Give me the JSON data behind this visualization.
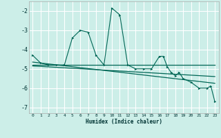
{
  "title": "",
  "xlabel": "Humidex (Indice chaleur)",
  "bg_color": "#cceee8",
  "grid_color": "#ffffff",
  "line_color": "#006655",
  "xlim": [
    -0.5,
    23.5
  ],
  "ylim": [
    -7.3,
    -1.5
  ],
  "yticks": [
    -7,
    -6,
    -5,
    -4,
    -3,
    -2
  ],
  "xticks": [
    0,
    1,
    2,
    3,
    4,
    5,
    6,
    7,
    8,
    9,
    10,
    11,
    12,
    13,
    14,
    15,
    16,
    17,
    18,
    19,
    20,
    21,
    22,
    23
  ],
  "line1_x": [
    0,
    1,
    2,
    3,
    4,
    5,
    6,
    7,
    8,
    9,
    10,
    11,
    12,
    13,
    14,
    15,
    16,
    16.5,
    17,
    17.5,
    18,
    18.5,
    19,
    20,
    21,
    22,
    22.5,
    23
  ],
  "line1_y": [
    -4.3,
    -4.7,
    -4.8,
    -4.8,
    -4.8,
    -3.4,
    -3.0,
    -3.1,
    -4.3,
    -4.8,
    -1.85,
    -2.2,
    -4.8,
    -5.0,
    -5.0,
    -5.0,
    -4.35,
    -4.35,
    -4.9,
    -5.2,
    -5.35,
    -5.2,
    -5.5,
    -5.7,
    -6.0,
    -6.0,
    -5.9,
    -6.7
  ],
  "line2_x": [
    0,
    23
  ],
  "line2_y": [
    -4.8,
    -4.8
  ],
  "line3_x": [
    0,
    23
  ],
  "line3_y": [
    -4.85,
    -5.4
  ],
  "line4_x": [
    0,
    23
  ],
  "line4_y": [
    -4.65,
    -5.75
  ]
}
